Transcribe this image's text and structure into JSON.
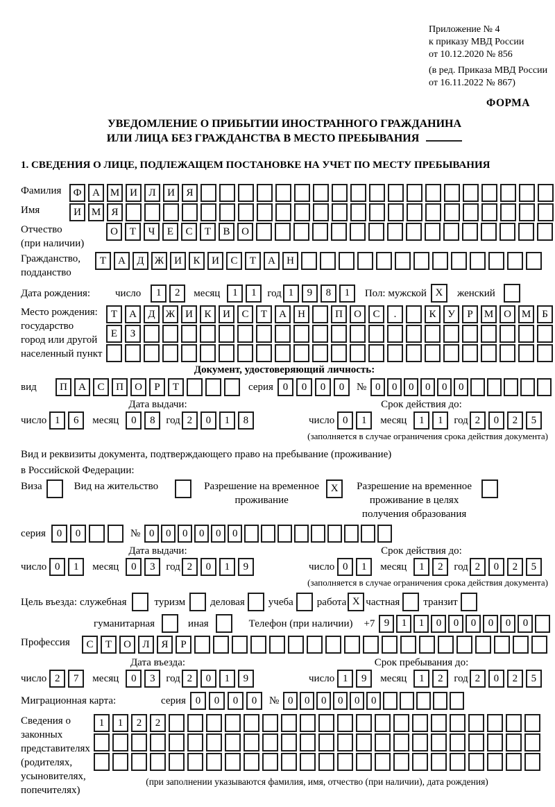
{
  "header": {
    "appendix_lines": [
      "Приложение № 4",
      "к приказу МВД России",
      "от 10.12.2020 № 856"
    ],
    "amendment_lines": [
      "(в ред. Приказа МВД России",
      "от 16.11.2022 № 867)"
    ],
    "form_label": "ФОРМА"
  },
  "title": {
    "line1": "УВЕДОМЛЕНИЕ О ПРИБЫТИИ ИНОСТРАННОГО ГРАЖДАНИНА",
    "line2": "ИЛИ ЛИЦА БЕЗ ГРАЖДАНСТВА В МЕСТО ПРЕБЫВАНИЯ"
  },
  "section1": {
    "heading": "1. СВЕДЕНИЯ О ЛИЦЕ, ПОДЛЕЖАЩЕМ ПОСТАНОВКЕ НА УЧЕТ ПО МЕСТУ ПРЕБЫВАНИЯ"
  },
  "labels": {
    "day": "число",
    "month": "месяц",
    "year": "год",
    "series": "серия",
    "number": "№"
  },
  "person": {
    "surname": {
      "label": "Фамилия",
      "v": "ФАМИЛИЯ",
      "n": 26
    },
    "given_name": {
      "label": "Имя",
      "v": "ИМЯ",
      "n": 26
    },
    "patronymic": {
      "label1": "Отчество",
      "label2": "(при наличии)",
      "v": "ОТЧЕСТВО",
      "n": 24
    },
    "citizenship": {
      "label1": "Гражданство,",
      "label2": "подданство",
      "v": "ТАДЖИКИСТАН",
      "n": 24
    },
    "birth_date": {
      "label": "Дата рождения:",
      "day": {
        "v": "12",
        "n": 2
      },
      "month": {
        "v": "11",
        "n": 2
      },
      "year": {
        "v": "1981",
        "n": 4
      }
    },
    "sex": {
      "label": "Пол: мужской",
      "male_mark": "X",
      "female_label": "женский",
      "female_mark": ""
    },
    "birth_place": {
      "label_lines": [
        "Место рождения:",
        "государство",
        "город или другой",
        "населенный пункт"
      ],
      "row1": {
        "v": "ТАДЖИКИСТАН ПОС. КУРМОМБ",
        "n": 24
      },
      "row2": {
        "v": "ЕЗ",
        "n": 24
      },
      "row3": {
        "v": "",
        "n": 24
      }
    }
  },
  "identity_doc": {
    "heading": "Документ, удостоверяющий личность:",
    "type_label": "вид",
    "type": {
      "v": "ПАСПОРТ",
      "n": 10
    },
    "series": {
      "v": "0000",
      "n": 4
    },
    "number": {
      "v": "000000",
      "n": 11
    },
    "issue_heading": "Дата выдачи:",
    "issue": {
      "day": {
        "v": "16",
        "n": 2
      },
      "month": {
        "v": "08",
        "n": 2
      },
      "year": {
        "v": "2018",
        "n": 4
      }
    },
    "valid_heading": "Срок действия до:",
    "valid": {
      "day": {
        "v": "01",
        "n": 2
      },
      "month": {
        "v": "11",
        "n": 2
      },
      "year": {
        "v": "2025",
        "n": 4
      }
    },
    "note": "(заполняется в случае ограничения срока действия документа)"
  },
  "residence_doc": {
    "heading1": "Вид и реквизиты документа, подтверждающего право на пребывание (проживание)",
    "heading2": "в Российской Федерации:",
    "options": [
      {
        "label": "Виза",
        "mark": ""
      },
      {
        "label": "Вид на жительство",
        "mark": ""
      },
      {
        "label": "Разрешение на временное проживание",
        "mark": "X"
      },
      {
        "label": "Разрешение на временное проживание в целях получения образования",
        "mark": ""
      }
    ],
    "series": {
      "v": "00",
      "n": 4
    },
    "number": {
      "v": "000000",
      "n": 15
    },
    "issue_heading": "Дата выдачи:",
    "issue": {
      "day": {
        "v": "01",
        "n": 2
      },
      "month": {
        "v": "03",
        "n": 2
      },
      "year": {
        "v": "2019",
        "n": 4
      }
    },
    "valid_heading": "Срок действия до:",
    "valid": {
      "day": {
        "v": "01",
        "n": 2
      },
      "month": {
        "v": "12",
        "n": 2
      },
      "year": {
        "v": "2025",
        "n": 4
      }
    },
    "note": "(заполняется в случае ограничения срока действия документа)"
  },
  "purpose": {
    "label": "Цель въезда:",
    "row1": [
      {
        "label": "служебная",
        "mark": ""
      },
      {
        "label": "туризм",
        "mark": ""
      },
      {
        "label": "деловая",
        "mark": ""
      },
      {
        "label": "учеба",
        "mark": ""
      },
      {
        "label": "работа",
        "mark": "X"
      },
      {
        "label": "частная",
        "mark": ""
      },
      {
        "label": "транзит",
        "mark": ""
      }
    ],
    "row2": [
      {
        "label": "гуманитарная",
        "mark": ""
      },
      {
        "label": "иная",
        "mark": ""
      }
    ],
    "phone_label": "Телефон (при наличии)",
    "phone_prefix": "+7",
    "phone": {
      "v": "911000000",
      "n": 10
    }
  },
  "profession": {
    "label": "Профессия",
    "v": "СТОЛЯР",
    "n": 25
  },
  "entry": {
    "date_heading": "Дата въезда:",
    "date": {
      "day": {
        "v": "27",
        "n": 2
      },
      "month": {
        "v": "03",
        "n": 2
      },
      "year": {
        "v": "2019",
        "n": 4
      }
    },
    "stay_heading": "Срок пребывания до:",
    "stay": {
      "day": {
        "v": "19",
        "n": 2
      },
      "month": {
        "v": "12",
        "n": 2
      },
      "year": {
        "v": "2025",
        "n": 4
      }
    }
  },
  "migration_card": {
    "label": "Миграционная карта:",
    "series": {
      "v": "0000",
      "n": 4
    },
    "number": {
      "v": "000000",
      "n": 11
    }
  },
  "legal_reps": {
    "label_lines": [
      "Сведения о",
      "законных",
      "представителях",
      "(родителях,",
      "усыновителях,",
      "попечителях)"
    ],
    "row1": {
      "v": "1122",
      "n": 24
    },
    "row2": {
      "v": "",
      "n": 24
    },
    "row3": {
      "v": "",
      "n": 24
    },
    "note": "(при заполнении указываются фамилия, имя, отчество (при наличии), дата рождения)"
  }
}
